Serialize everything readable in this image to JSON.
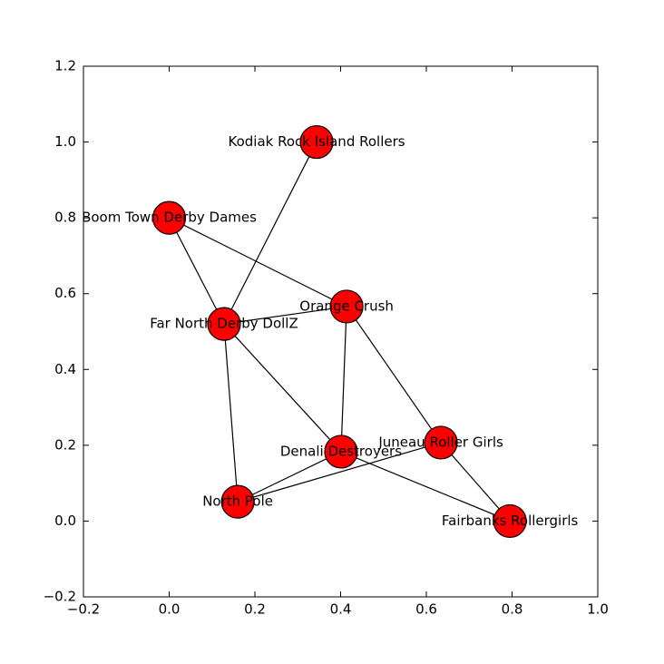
{
  "chart_data": {
    "type": "network",
    "nodes": [
      {
        "label": "Kodiak Rock Island Rollers",
        "x": 0.344,
        "y": 1.0
      },
      {
        "label": "Boom Town Derby Dames",
        "x": 0.0,
        "y": 0.8
      },
      {
        "label": "Orange Crush",
        "x": 0.414,
        "y": 0.566
      },
      {
        "label": "Far North Derby DollZ",
        "x": 0.128,
        "y": 0.52
      },
      {
        "label": "Juneau Roller Girls",
        "x": 0.634,
        "y": 0.207
      },
      {
        "label": "Denali Destroyers",
        "x": 0.401,
        "y": 0.183
      },
      {
        "label": "North Pole",
        "x": 0.16,
        "y": 0.051
      },
      {
        "label": "Fairbanks Rollergirls",
        "x": 0.795,
        "y": 0.0
      }
    ],
    "edges": [
      [
        0,
        3
      ],
      [
        1,
        3
      ],
      [
        1,
        2
      ],
      [
        3,
        2
      ],
      [
        3,
        5
      ],
      [
        3,
        6
      ],
      [
        2,
        5
      ],
      [
        2,
        4
      ],
      [
        4,
        7
      ],
      [
        5,
        7
      ],
      [
        6,
        5
      ],
      [
        6,
        4
      ]
    ],
    "node_color": "#ff0000",
    "xlim": [
      -0.2,
      1.0
    ],
    "ylim": [
      -0.2,
      1.2
    ],
    "xticks": [
      {
        "value": -0.2,
        "label": "−0.2"
      },
      {
        "value": 0.0,
        "label": "0.0"
      },
      0.2,
      0.4,
      0.6,
      0.8,
      {
        "value": 1.0,
        "label": "1.0"
      }
    ],
    "yticks": [
      {
        "value": -0.2,
        "label": "−0.2"
      },
      {
        "value": 0.0,
        "label": "0.0"
      },
      0.2,
      0.4,
      0.6,
      0.8,
      {
        "value": 1.0,
        "label": "1.0"
      },
      1.2
    ]
  }
}
